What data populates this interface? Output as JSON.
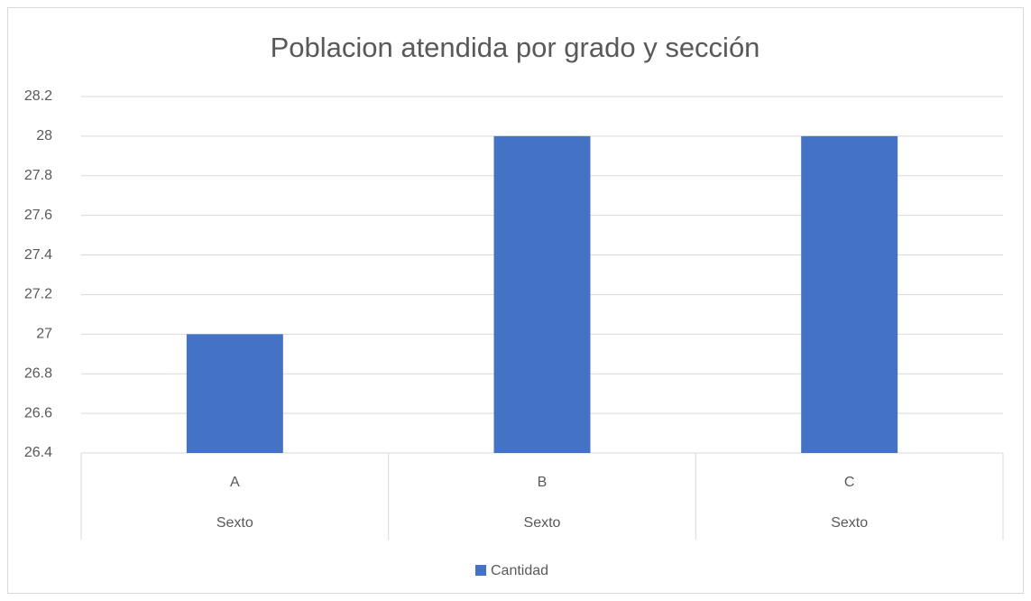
{
  "chart_data": {
    "type": "bar",
    "title": "Poblacion atendida por grado y sección",
    "categories": [
      "A",
      "B",
      "C"
    ],
    "groups": [
      "Sexto",
      "Sexto",
      "Sexto"
    ],
    "series": [
      {
        "name": "Cantidad",
        "color": "#4472c4",
        "values": [
          27,
          28,
          28
        ]
      }
    ],
    "ylim": [
      26.4,
      28.2
    ],
    "yticks": [
      26.4,
      26.6,
      26.8,
      27,
      27.2,
      27.4,
      27.6,
      27.8,
      28,
      28.2
    ],
    "grid": true,
    "legend": "bottom"
  }
}
